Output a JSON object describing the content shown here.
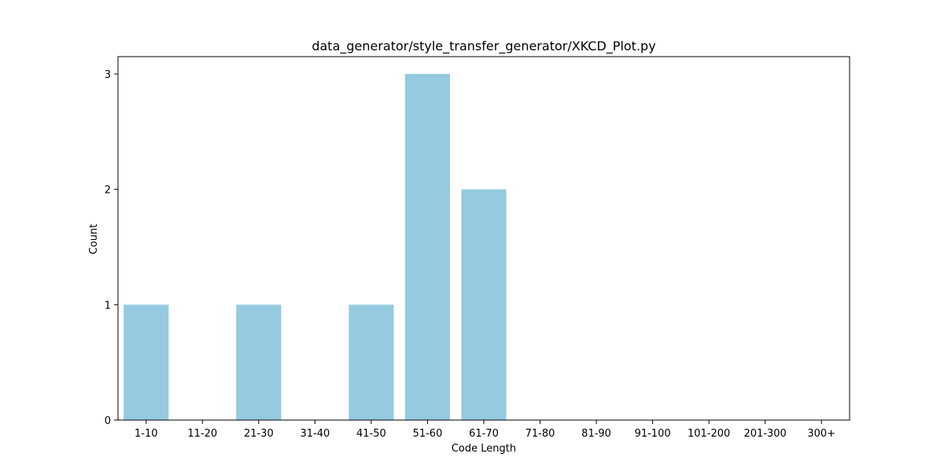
{
  "chart_data": {
    "type": "bar",
    "title": "data_generator/style_transfer_generator/XKCD_Plot.py",
    "xlabel": "Code Length",
    "ylabel": "Count",
    "categories": [
      "1-10",
      "11-20",
      "21-30",
      "31-40",
      "41-50",
      "51-60",
      "61-70",
      "71-80",
      "81-90",
      "91-100",
      "101-200",
      "201-300",
      "300+"
    ],
    "values": [
      1,
      0,
      1,
      0,
      1,
      3,
      2,
      0,
      0,
      0,
      0,
      0,
      0
    ],
    "ylim": [
      0,
      3.15
    ],
    "yticks": [
      0,
      1,
      2,
      3
    ],
    "grid": false,
    "legend": "none",
    "colors": {
      "bar": "#96CAE0",
      "axis": "#000000",
      "background": "#ffffff"
    }
  }
}
